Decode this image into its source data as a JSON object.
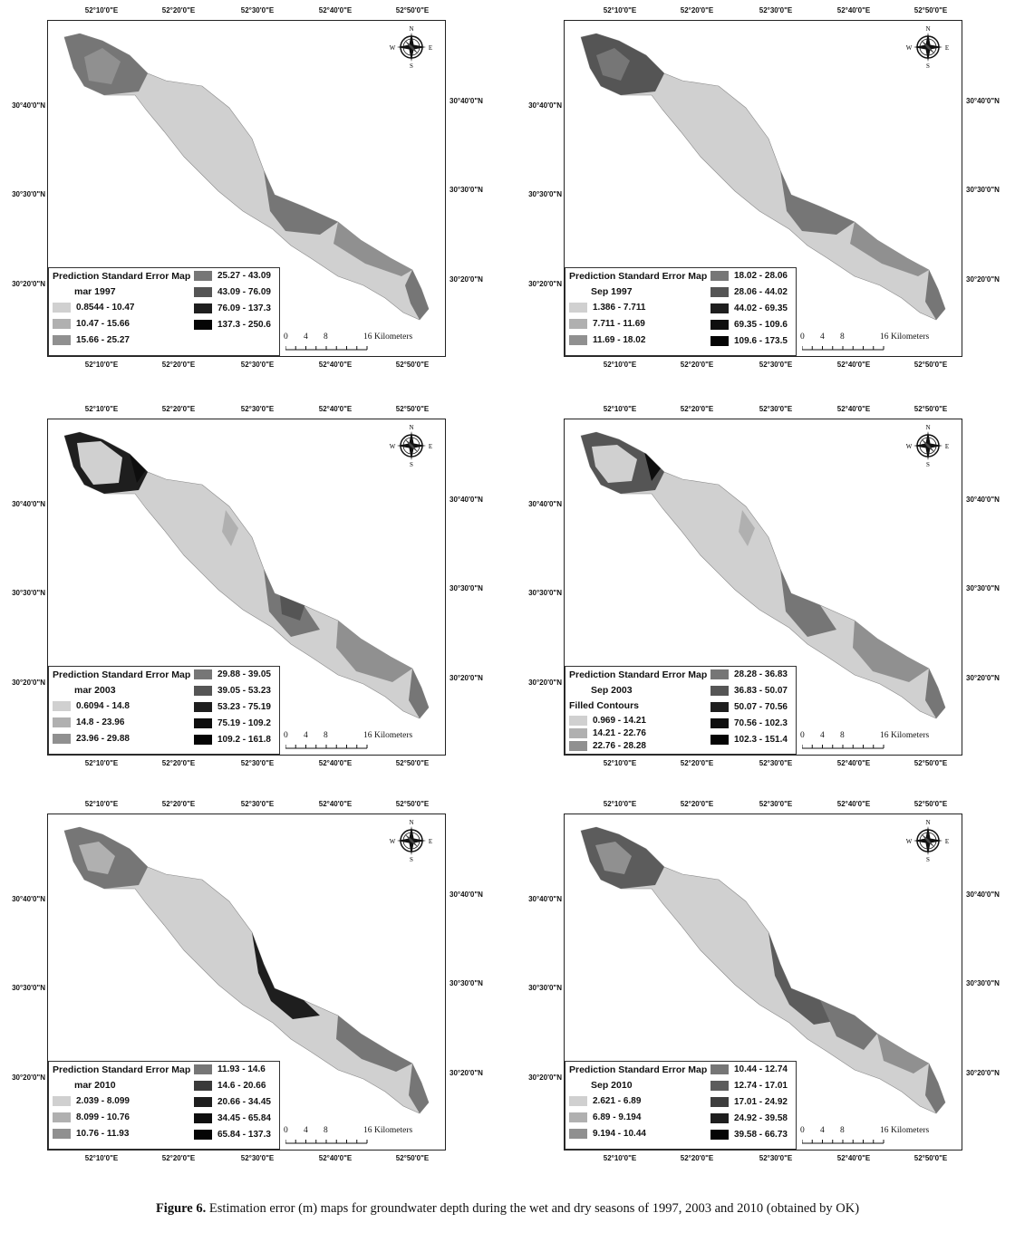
{
  "panels": [
    {
      "legend_title": "Prediction Standard Error Map",
      "legend_subtitle": "mar 1997",
      "legend_extra": "",
      "classes": [
        "0.8544 - 10.47",
        "10.47 - 15.66",
        "15.66 - 25.27",
        "25.27 - 43.09",
        "43.09 - 76.09",
        "76.09 - 137.3",
        "137.3 - 250.6"
      ],
      "colors": [
        "#d0d0d0",
        "#b0b0b0",
        "#909090",
        "#767676",
        "#555555",
        "#1e1e1e",
        "#050505"
      ]
    },
    {
      "legend_title": "Prediction Standard Error Map",
      "legend_subtitle": "Sep 1997",
      "legend_extra": "",
      "classes": [
        "1.386 - 7.711",
        "7.711 - 11.69",
        "11.69 - 18.02",
        "18.02 - 28.06",
        "28.06 - 44.02",
        "44.02 - 69.35",
        "69.35 - 109.6",
        "109.6 - 173.5"
      ],
      "colors": [
        "#d0d0d0",
        "#b0b0b0",
        "#909090",
        "#767676",
        "#555555",
        "#1e1e1e",
        "#0e0e0e",
        "#050505"
      ]
    },
    {
      "legend_title": "Prediction Standard Error Map",
      "legend_subtitle": "mar 2003",
      "legend_extra": "",
      "classes": [
        "0.6094 - 14.8",
        "14.8 - 23.96",
        "23.96 - 29.88",
        "29.88 - 39.05",
        "39.05 - 53.23",
        "53.23 - 75.19",
        "75.19 - 109.2",
        "109.2 - 161.8"
      ],
      "colors": [
        "#d0d0d0",
        "#b0b0b0",
        "#909090",
        "#767676",
        "#555555",
        "#1e1e1e",
        "#0e0e0e",
        "#050505"
      ]
    },
    {
      "legend_title": "Prediction Standard Error Map",
      "legend_subtitle": "Sep 2003",
      "legend_extra": "Filled Contours",
      "classes": [
        "0.969 - 14.21",
        "14.21 - 22.76",
        "22.76 - 28.28",
        "28.28 - 36.83",
        "36.83 - 50.07",
        "50.07 - 70.56",
        "70.56 - 102.3",
        "102.3 - 151.4"
      ],
      "colors": [
        "#d0d0d0",
        "#b0b0b0",
        "#909090",
        "#767676",
        "#555555",
        "#1e1e1e",
        "#0e0e0e",
        "#050505"
      ]
    },
    {
      "legend_title": "Prediction Standard Error Map",
      "legend_subtitle": "mar 2010",
      "legend_extra": "",
      "classes": [
        "2.039 - 8.099",
        "8.099 - 10.76",
        "10.76 - 11.93",
        "11.93 - 14.6",
        "14.6 - 20.66",
        "20.66 - 34.45",
        "34.45 - 65.84",
        "65.84 - 137.3"
      ],
      "colors": [
        "#d0d0d0",
        "#b0b0b0",
        "#909090",
        "#767676",
        "#3a3a3a",
        "#1e1e1e",
        "#0e0e0e",
        "#050505"
      ]
    },
    {
      "legend_title": "Prediction Standard Error Map",
      "legend_subtitle": "Sep 2010",
      "legend_extra": "",
      "classes": [
        "2.621 - 6.89",
        "6.89 - 9.194",
        "9.194 - 10.44",
        "10.44 - 12.74",
        "12.74 - 17.01",
        "17.01 - 24.92",
        "24.92 - 39.58",
        "39.58 - 66.73"
      ],
      "colors": [
        "#d0d0d0",
        "#b0b0b0",
        "#909090",
        "#767676",
        "#5c5c5c",
        "#3e3e3e",
        "#1e1e1e",
        "#050505"
      ]
    }
  ],
  "lon_ticks": [
    "52°10'0\"E",
    "52°20'0\"E",
    "52°30'0\"E",
    "52°40'0\"E",
    "52°50'0\"E"
  ],
  "lat_ticks": [
    "30°40'0\"N",
    "30°30'0\"N",
    "30°20'0\"N"
  ],
  "compass": {
    "n": "N",
    "s": "S",
    "e": "E",
    "w": "W"
  },
  "scale": {
    "labels": [
      "0",
      "4",
      "8",
      "16"
    ],
    "unit": "Kilometers"
  },
  "caption": {
    "label": "Figure 6.",
    "text": "Estimation error (m) maps for groundwater depth during the wet and dry seasons of 1997, 2003 and 2010 (obtained by OK)"
  }
}
